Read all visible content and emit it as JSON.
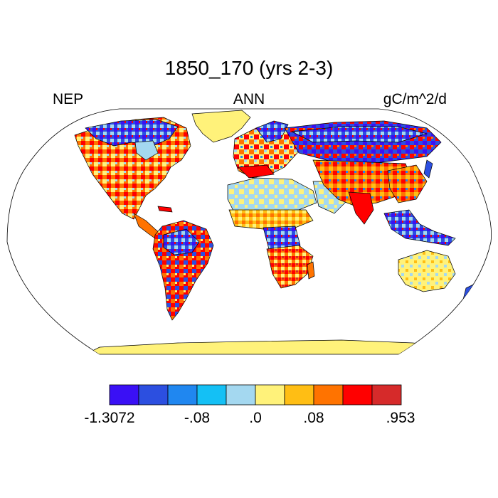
{
  "title": "1850_170 (yrs 2-3)",
  "left_label": "NEP",
  "center_label": "ANN",
  "right_label": "gC/m^2/d",
  "colorbar": {
    "colors": [
      "#3a10f5",
      "#2c4fe0",
      "#2087f0",
      "#14c0f5",
      "#a4d8f0",
      "#fff27a",
      "#ffbe14",
      "#ff7300",
      "#ff0000",
      "#d62a2a"
    ],
    "tick_labels": [
      "-1.3072",
      "-.08",
      ".0",
      ".08",
      ".953"
    ]
  },
  "map": {
    "projection": "Robinson",
    "ocean_color": "#ffffff",
    "coastline_color": "#000000"
  }
}
